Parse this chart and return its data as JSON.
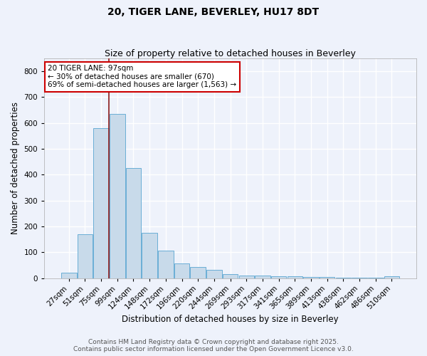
{
  "title": "20, TIGER LANE, BEVERLEY, HU17 8DT",
  "subtitle": "Size of property relative to detached houses in Beverley",
  "xlabel": "Distribution of detached houses by size in Beverley",
  "ylabel": "Number of detached properties",
  "bins": [
    "27sqm",
    "51sqm",
    "75sqm",
    "99sqm",
    "124sqm",
    "148sqm",
    "172sqm",
    "196sqm",
    "220sqm",
    "244sqm",
    "269sqm",
    "293sqm",
    "317sqm",
    "341sqm",
    "365sqm",
    "389sqm",
    "413sqm",
    "438sqm",
    "462sqm",
    "486sqm",
    "510sqm"
  ],
  "values": [
    20,
    170,
    580,
    635,
    425,
    175,
    105,
    57,
    42,
    32,
    15,
    10,
    9,
    8,
    6,
    4,
    3,
    2,
    1,
    1,
    6
  ],
  "bar_color": "#c8daea",
  "bar_edge_color": "#6aaed6",
  "vline_color": "#8b1a1a",
  "annotation_text": "20 TIGER LANE: 97sqm\n← 30% of detached houses are smaller (670)\n69% of semi-detached houses are larger (1,563) →",
  "annotation_box_color": "#ffffff",
  "annotation_box_edge": "#cc0000",
  "ylim": [
    0,
    850
  ],
  "yticks": [
    0,
    100,
    200,
    300,
    400,
    500,
    600,
    700,
    800
  ],
  "background_color": "#eef2fb",
  "grid_color": "#ffffff",
  "footer_line1": "Contains HM Land Registry data © Crown copyright and database right 2025.",
  "footer_line2": "Contains public sector information licensed under the Open Government Licence v3.0.",
  "title_fontsize": 10,
  "subtitle_fontsize": 9,
  "axis_label_fontsize": 8.5,
  "tick_fontsize": 7.5,
  "annotation_fontsize": 7.5,
  "footer_fontsize": 6.5
}
